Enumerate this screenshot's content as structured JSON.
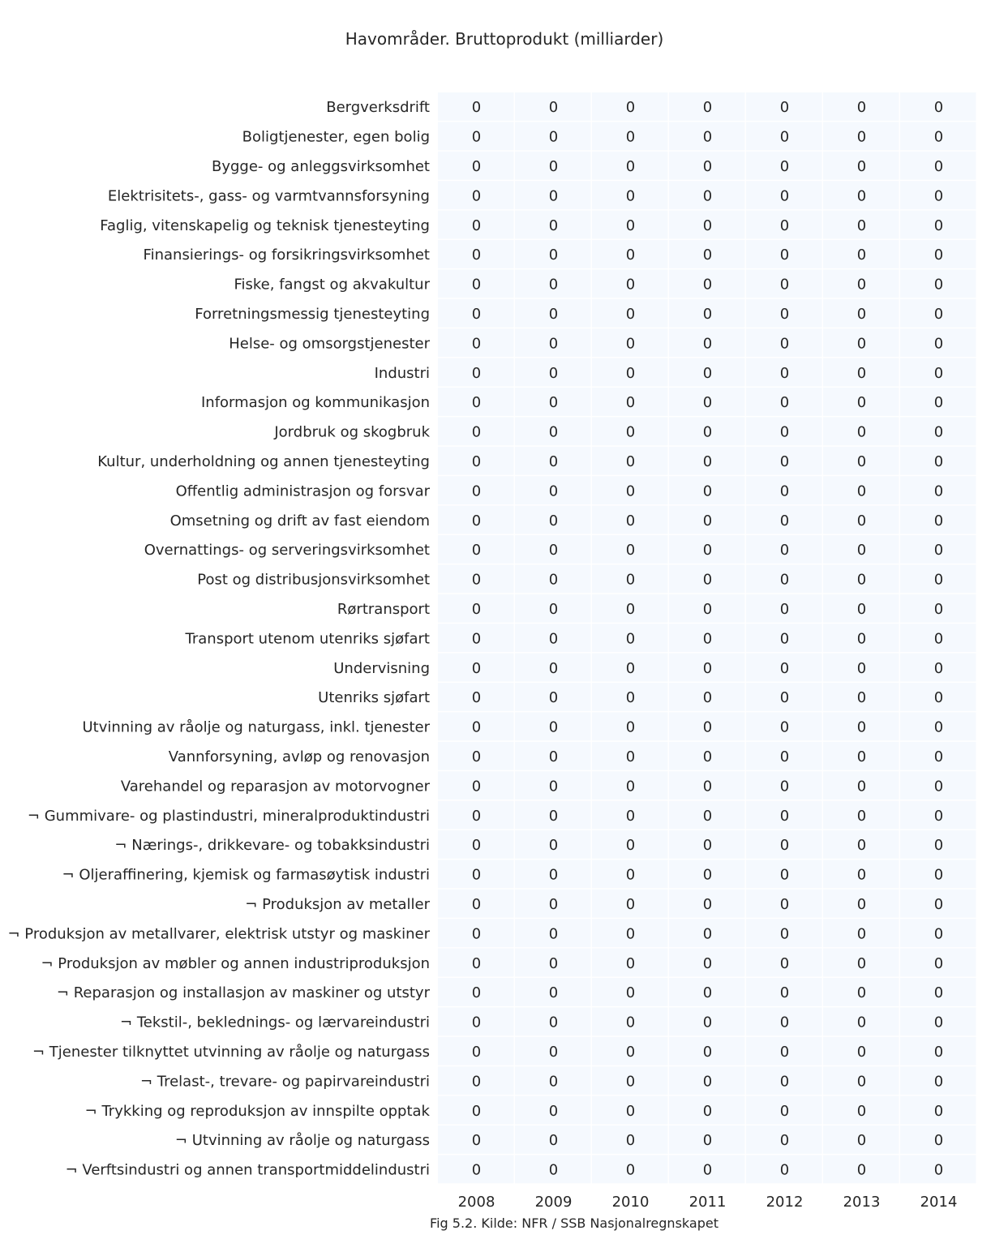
{
  "chart_data": {
    "type": "heatmap",
    "title": "Havområder. Bruttoprodukt (milliarder)",
    "caption": "Fig 5.2. Kilde: NFR / SSB Nasjonalregnskapet",
    "columns": [
      "2008",
      "2009",
      "2010",
      "2011",
      "2012",
      "2013",
      "2014"
    ],
    "rows": [
      "Bergverksdrift",
      "Boligtjenester, egen bolig",
      "Bygge- og anleggsvirksomhet",
      "Elektrisitets-, gass- og varmtvannsforsyning",
      "Faglig, vitenskapelig og teknisk tjenesteyting",
      "Finansierings- og forsikringsvirksomhet",
      "Fiske, fangst og akvakultur",
      "Forretningsmessig tjenesteyting",
      "Helse- og omsorgstjenester",
      "Industri",
      "Informasjon og kommunikasjon",
      "Jordbruk og skogbruk",
      "Kultur, underholdning og annen tjenesteyting",
      "Offentlig administrasjon og forsvar",
      "Omsetning og drift av fast eiendom",
      "Overnattings- og serveringsvirksomhet",
      "Post og distribusjonsvirksomhet",
      "Rørtransport",
      "Transport utenom utenriks sjøfart",
      "Undervisning",
      "Utenriks sjøfart",
      "Utvinning av råolje og naturgass, inkl. tjenester",
      "Vannforsyning, avløp og renovasjon",
      "Varehandel og reparasjon av motorvogner",
      "¬ Gummivare- og plastindustri, mineralproduktindustri",
      "¬ Nærings-, drikkevare- og tobakksindustri",
      "¬ Oljeraffinering, kjemisk og farmasøytisk industri",
      "¬ Produksjon av metaller",
      "¬ Produksjon av metallvarer, elektrisk utstyr og maskiner",
      "¬ Produksjon av møbler og annen industriproduksjon",
      "¬ Reparasjon og installasjon av maskiner og utstyr",
      "¬ Tekstil-, beklednings- og lærvareindustri",
      "¬ Tjenester tilknyttet utvinning av råolje og naturgass",
      "¬ Trelast-, trevare- og papirvareindustri",
      "¬ Trykking og reproduksjon av innspilte opptak",
      "¬ Utvinning av råolje og naturgass",
      "¬ Verftsindustri og annen transportmiddelindustri"
    ],
    "values": [
      [
        0,
        0,
        0,
        0,
        0,
        0,
        0
      ],
      [
        0,
        0,
        0,
        0,
        0,
        0,
        0
      ],
      [
        0,
        0,
        0,
        0,
        0,
        0,
        0
      ],
      [
        0,
        0,
        0,
        0,
        0,
        0,
        0
      ],
      [
        0,
        0,
        0,
        0,
        0,
        0,
        0
      ],
      [
        0,
        0,
        0,
        0,
        0,
        0,
        0
      ],
      [
        0,
        0,
        0,
        0,
        0,
        0,
        0
      ],
      [
        0,
        0,
        0,
        0,
        0,
        0,
        0
      ],
      [
        0,
        0,
        0,
        0,
        0,
        0,
        0
      ],
      [
        0,
        0,
        0,
        0,
        0,
        0,
        0
      ],
      [
        0,
        0,
        0,
        0,
        0,
        0,
        0
      ],
      [
        0,
        0,
        0,
        0,
        0,
        0,
        0
      ],
      [
        0,
        0,
        0,
        0,
        0,
        0,
        0
      ],
      [
        0,
        0,
        0,
        0,
        0,
        0,
        0
      ],
      [
        0,
        0,
        0,
        0,
        0,
        0,
        0
      ],
      [
        0,
        0,
        0,
        0,
        0,
        0,
        0
      ],
      [
        0,
        0,
        0,
        0,
        0,
        0,
        0
      ],
      [
        0,
        0,
        0,
        0,
        0,
        0,
        0
      ],
      [
        0,
        0,
        0,
        0,
        0,
        0,
        0
      ],
      [
        0,
        0,
        0,
        0,
        0,
        0,
        0
      ],
      [
        0,
        0,
        0,
        0,
        0,
        0,
        0
      ],
      [
        0,
        0,
        0,
        0,
        0,
        0,
        0
      ],
      [
        0,
        0,
        0,
        0,
        0,
        0,
        0
      ],
      [
        0,
        0,
        0,
        0,
        0,
        0,
        0
      ],
      [
        0,
        0,
        0,
        0,
        0,
        0,
        0
      ],
      [
        0,
        0,
        0,
        0,
        0,
        0,
        0
      ],
      [
        0,
        0,
        0,
        0,
        0,
        0,
        0
      ],
      [
        0,
        0,
        0,
        0,
        0,
        0,
        0
      ],
      [
        0,
        0,
        0,
        0,
        0,
        0,
        0
      ],
      [
        0,
        0,
        0,
        0,
        0,
        0,
        0
      ],
      [
        0,
        0,
        0,
        0,
        0,
        0,
        0
      ],
      [
        0,
        0,
        0,
        0,
        0,
        0,
        0
      ],
      [
        0,
        0,
        0,
        0,
        0,
        0,
        0
      ],
      [
        0,
        0,
        0,
        0,
        0,
        0,
        0
      ],
      [
        0,
        0,
        0,
        0,
        0,
        0,
        0
      ],
      [
        0,
        0,
        0,
        0,
        0,
        0,
        0
      ],
      [
        0,
        0,
        0,
        0,
        0,
        0,
        0
      ]
    ],
    "cell_color": "#f5f9fe"
  }
}
